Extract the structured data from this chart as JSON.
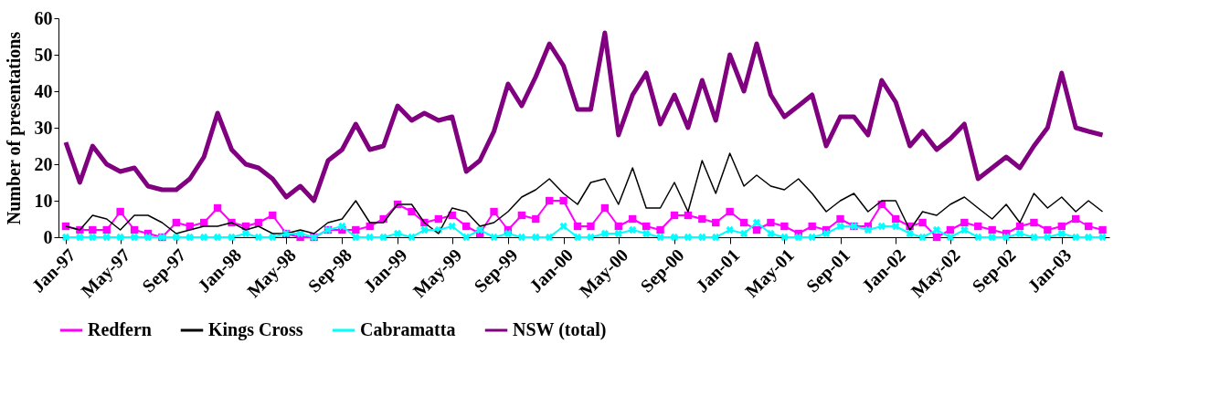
{
  "chart_data": {
    "type": "line",
    "ylabel": "Number of presentations",
    "x": [
      "1997-01",
      "1997-02",
      "1997-03",
      "1997-04",
      "1997-05",
      "1997-06",
      "1997-07",
      "1997-08",
      "1997-09",
      "1997-10",
      "1997-11",
      "1997-12",
      "1998-01",
      "1998-02",
      "1998-03",
      "1998-04",
      "1998-05",
      "1998-06",
      "1998-07",
      "1998-08",
      "1998-09",
      "1998-10",
      "1998-11",
      "1998-12",
      "1999-01",
      "1999-02",
      "1999-03",
      "1999-04",
      "1999-05",
      "1999-06",
      "1999-07",
      "1999-08",
      "1999-09",
      "1999-10",
      "1999-11",
      "1999-12",
      "2000-01",
      "2000-02",
      "2000-03",
      "2000-04",
      "2000-05",
      "2000-06",
      "2000-07",
      "2000-08",
      "2000-09",
      "2000-10",
      "2000-11",
      "2000-12",
      "2001-01",
      "2001-02",
      "2001-03",
      "2001-04",
      "2001-05",
      "2001-06",
      "2001-07",
      "2001-08",
      "2001-09",
      "2001-10",
      "2001-11",
      "2001-12",
      "2002-01",
      "2002-02",
      "2002-03",
      "2002-04",
      "2002-05",
      "2002-06",
      "2002-07",
      "2002-08",
      "2002-09",
      "2002-10",
      "2002-11",
      "2002-12",
      "2003-01",
      "2003-02",
      "2003-03",
      "2003-04"
    ],
    "xlim": [
      "1996-12-16",
      "2003-04-16"
    ],
    "xticks": [
      {
        "value": "1997-01",
        "label": "Jan-97"
      },
      {
        "value": "1997-05",
        "label": "May-97"
      },
      {
        "value": "1997-09",
        "label": "Sep-97"
      },
      {
        "value": "1998-01",
        "label": "Jan-98"
      },
      {
        "value": "1998-05",
        "label": "May-98"
      },
      {
        "value": "1998-09",
        "label": "Sep-98"
      },
      {
        "value": "1999-01",
        "label": "Jan-99"
      },
      {
        "value": "1999-05",
        "label": "May-99"
      },
      {
        "value": "1999-09",
        "label": "Sep-99"
      },
      {
        "value": "2000-01",
        "label": "Jan-00"
      },
      {
        "value": "2000-05",
        "label": "May-00"
      },
      {
        "value": "2000-09",
        "label": "Sep-00"
      },
      {
        "value": "2001-01",
        "label": "Jan-01"
      },
      {
        "value": "2001-05",
        "label": "May-01"
      },
      {
        "value": "2001-09",
        "label": "Sep-01"
      },
      {
        "value": "2002-01",
        "label": "Jan-02"
      },
      {
        "value": "2002-05",
        "label": "May-02"
      },
      {
        "value": "2002-09",
        "label": "Sep-02"
      },
      {
        "value": "2003-01",
        "label": "Jan-03"
      }
    ],
    "ylim": [
      0,
      60
    ],
    "yticks": [
      0,
      10,
      20,
      30,
      40,
      50,
      60
    ],
    "grid": false,
    "legend": "bottom",
    "series": [
      {
        "name": "Redfern",
        "color": "#ff00ff",
        "marker": "square",
        "values": [
          3,
          2,
          2,
          2,
          7,
          2,
          1,
          0,
          4,
          3,
          4,
          8,
          4,
          3,
          4,
          6,
          1,
          0,
          0,
          2,
          2,
          2,
          3,
          5,
          9,
          7,
          4,
          5,
          6,
          3,
          1,
          7,
          2,
          6,
          5,
          10,
          10,
          3,
          3,
          8,
          3,
          5,
          3,
          2,
          6,
          6,
          5,
          4,
          7,
          4,
          2,
          4,
          3,
          1,
          3,
          2,
          5,
          3,
          3,
          9,
          5,
          3,
          4,
          0,
          2,
          4,
          3,
          2,
          1,
          3,
          4,
          2,
          3,
          5,
          3,
          2
        ]
      },
      {
        "name": "Kings Cross",
        "color": "#000000",
        "marker": "none",
        "values": [
          3,
          2,
          6,
          5,
          2,
          6,
          6,
          4,
          1,
          2,
          3,
          3,
          4,
          2,
          3,
          1,
          1,
          2,
          1,
          4,
          5,
          10,
          4,
          4,
          9,
          9,
          4,
          1,
          8,
          7,
          3,
          4,
          7,
          11,
          13,
          16,
          12,
          9,
          15,
          16,
          9,
          19,
          8,
          8,
          15,
          7,
          21,
          12,
          23,
          14,
          17,
          14,
          13,
          16,
          12,
          7,
          10,
          12,
          7,
          10,
          10,
          2,
          7,
          6,
          9,
          11,
          8,
          5,
          9,
          4,
          12,
          8,
          11,
          7,
          10,
          7
        ]
      },
      {
        "name": "Cabramatta",
        "color": "#00ffff",
        "marker": "cross",
        "values": [
          0,
          0,
          0,
          0,
          0,
          0,
          0,
          0,
          0,
          0,
          0,
          0,
          0,
          1,
          0,
          0,
          1,
          1,
          0,
          2,
          3,
          0,
          0,
          0,
          1,
          0,
          2,
          2,
          3,
          0,
          2,
          0,
          1,
          0,
          0,
          0,
          3,
          0,
          0,
          1,
          1,
          2,
          1,
          0,
          0,
          0,
          0,
          0,
          2,
          1,
          4,
          1,
          0,
          0,
          0,
          1,
          3,
          3,
          2,
          3,
          3,
          1,
          0,
          2,
          0,
          2,
          0,
          0,
          0,
          1,
          0,
          0,
          1,
          0,
          0,
          0
        ]
      },
      {
        "name": "NSW (total)",
        "color": "#800080",
        "marker": "none",
        "values": [
          26,
          15,
          25,
          20,
          18,
          19,
          14,
          13,
          13,
          16,
          22,
          34,
          24,
          20,
          19,
          16,
          11,
          14,
          10,
          21,
          24,
          31,
          24,
          25,
          36,
          32,
          34,
          32,
          33,
          18,
          21,
          29,
          42,
          36,
          44,
          53,
          47,
          35,
          35,
          56,
          28,
          39,
          45,
          31,
          39,
          30,
          43,
          32,
          50,
          40,
          53,
          39,
          33,
          36,
          39,
          25,
          33,
          33,
          28,
          43,
          37,
          25,
          29,
          24,
          27,
          31,
          16,
          19,
          22,
          19,
          25,
          30,
          45,
          30,
          29,
          28
        ]
      }
    ]
  }
}
